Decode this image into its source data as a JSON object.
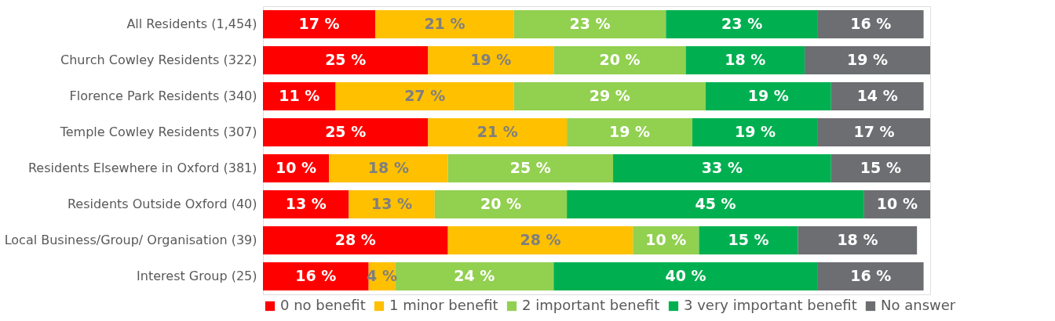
{
  "chart_data": {
    "type": "bar",
    "orientation": "horizontal",
    "stacked": true,
    "legend": "bottom",
    "grid": false,
    "tick_labels": "y",
    "xlim": [
      0,
      101
    ],
    "categories": [
      "All Residents (1,454)",
      "Church Cowley Residents (322)",
      "Florence Park Residents (340)",
      "Temple Cowley Residents (307)",
      "Residents Elsewhere in Oxford (381)",
      "Residents Outside Oxford (40)",
      "Local Business/Group/ Organisation (39)",
      "Interest Group (25)"
    ],
    "series": [
      {
        "name": "0 no benefit",
        "color": "#ff0000",
        "values": [
          17,
          25,
          11,
          25,
          10,
          13,
          28,
          16
        ],
        "value_labels": [
          "17 %",
          "25 %",
          "11 %",
          "25 %",
          "10 %",
          "13 %",
          "28 %",
          "16 %"
        ]
      },
      {
        "name": "1 minor benefit",
        "color": "#ffc000",
        "values": [
          21,
          19,
          27,
          21,
          18,
          13,
          28,
          4
        ],
        "value_labels": [
          "21 %",
          "19 %",
          "27 %",
          "21 %",
          "18 %",
          "13 %",
          "28 %",
          "4 %"
        ]
      },
      {
        "name": "2 important benefit",
        "color": "#92d050",
        "values": [
          23,
          20,
          29,
          19,
          25,
          20,
          10,
          24
        ],
        "value_labels": [
          "23 %",
          "20 %",
          "29 %",
          "19 %",
          "25 %",
          "20 %",
          "10 %",
          "24 %"
        ]
      },
      {
        "name": "3 very important benefit",
        "color": "#00b050",
        "values": [
          23,
          18,
          19,
          19,
          33,
          45,
          15,
          40
        ],
        "value_labels": [
          "23 %",
          "18 %",
          "19 %",
          "19 %",
          "33 %",
          "45 %",
          "15 %",
          "40 %"
        ]
      },
      {
        "name": "No answer",
        "color": "#6d6e71",
        "values": [
          16,
          19,
          14,
          17,
          15,
          10,
          18,
          16
        ],
        "value_labels": [
          "16 %",
          "19 %",
          "14 %",
          "17 %",
          "15 %",
          "10 %",
          "18 %",
          "16 %"
        ]
      }
    ]
  }
}
